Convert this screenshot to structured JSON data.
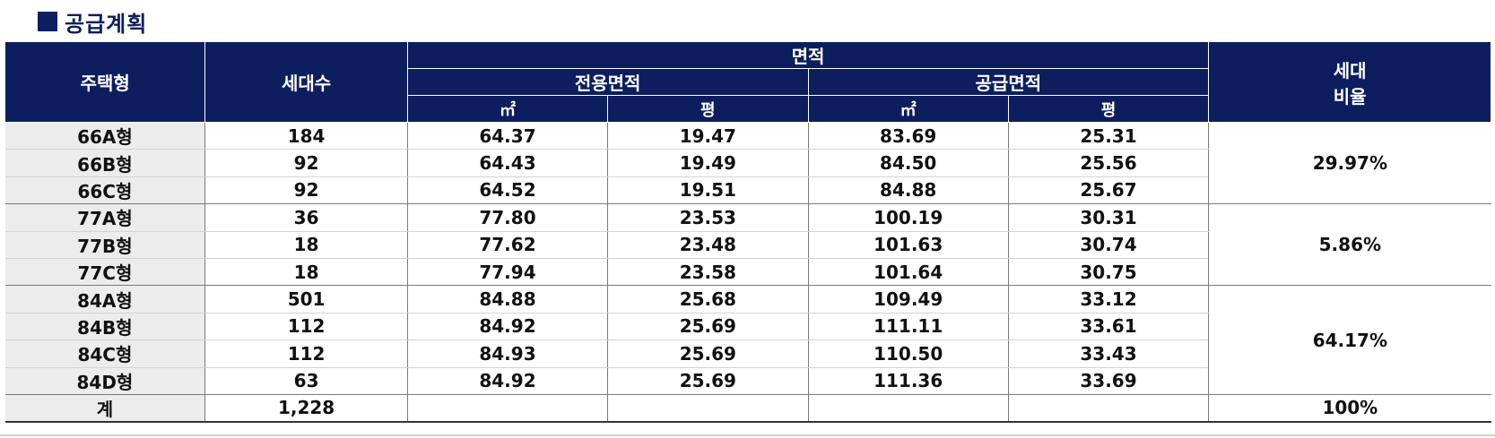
{
  "title": "공급계획",
  "headers": {
    "type": "주택형",
    "households": "세대수",
    "area": "면적",
    "exclusive_area": "전용면적",
    "supply_area": "공급면적",
    "sqm": "㎡",
    "pyeong": "평",
    "ratio_line1": "세대",
    "ratio_line2": "비율"
  },
  "rows": [
    {
      "type": "66A형",
      "households": "184",
      "ex_sqm": "64.37",
      "ex_py": "19.47",
      "su_sqm": "83.69",
      "su_py": "25.31"
    },
    {
      "type": "66B형",
      "households": "92",
      "ex_sqm": "64.43",
      "ex_py": "19.49",
      "su_sqm": "84.50",
      "su_py": "25.56"
    },
    {
      "type": "66C형",
      "households": "92",
      "ex_sqm": "64.52",
      "ex_py": "19.51",
      "su_sqm": "84.88",
      "su_py": "25.67"
    },
    {
      "type": "77A형",
      "households": "36",
      "ex_sqm": "77.80",
      "ex_py": "23.53",
      "su_sqm": "100.19",
      "su_py": "30.31"
    },
    {
      "type": "77B형",
      "households": "18",
      "ex_sqm": "77.62",
      "ex_py": "23.48",
      "su_sqm": "101.63",
      "su_py": "30.74"
    },
    {
      "type": "77C형",
      "households": "18",
      "ex_sqm": "77.94",
      "ex_py": "23.58",
      "su_sqm": "101.64",
      "su_py": "30.75"
    },
    {
      "type": "84A형",
      "households": "501",
      "ex_sqm": "84.88",
      "ex_py": "25.68",
      "su_sqm": "109.49",
      "su_py": "33.12"
    },
    {
      "type": "84B형",
      "households": "112",
      "ex_sqm": "84.92",
      "ex_py": "25.69",
      "su_sqm": "111.11",
      "su_py": "33.61"
    },
    {
      "type": "84C형",
      "households": "112",
      "ex_sqm": "84.93",
      "ex_py": "25.69",
      "su_sqm": "110.50",
      "su_py": "33.43"
    },
    {
      "type": "84D형",
      "households": "63",
      "ex_sqm": "84.92",
      "ex_py": "25.69",
      "su_sqm": "111.36",
      "su_py": "33.69"
    }
  ],
  "ratios": {
    "group_66": "29.97%",
    "group_77": "5.86%",
    "group_84": "64.17%"
  },
  "total": {
    "label": "계",
    "households": "1,228",
    "ratio": "100%"
  },
  "colors": {
    "header_bg": "#0c1e5e",
    "header_text": "#ffffff",
    "type_col_bg": "#ececec"
  }
}
